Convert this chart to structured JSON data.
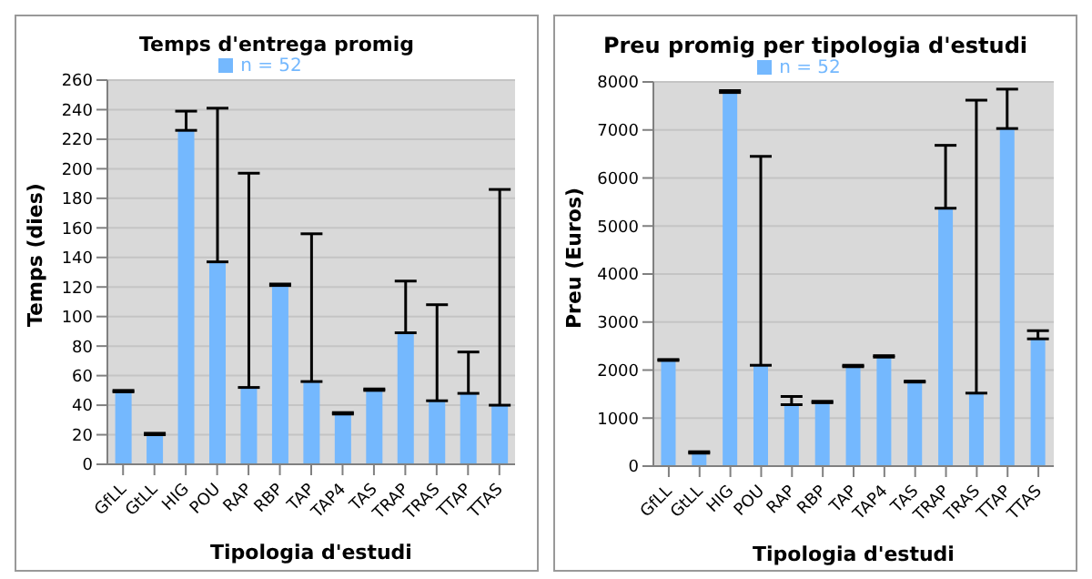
{
  "chart_data": [
    {
      "type": "bar",
      "title": "Temps d'entrega promig",
      "xlabel": "Tipologia d'estudi",
      "ylabel": "Temps (dies)",
      "categories": [
        "GfLL",
        "GtLL",
        "HIG",
        "POU",
        "RAP",
        "RBP",
        "TAP",
        "TAP4",
        "TAS",
        "TRAP",
        "TRAS",
        "TTAP",
        "TTAS"
      ],
      "series": [
        {
          "name": "n = 52",
          "color": "#74b8fe",
          "values": [
            49,
            20,
            226,
            137,
            52,
            121,
            56,
            34,
            50,
            89,
            43,
            48,
            40
          ],
          "errors": [
            [
              49,
              50
            ],
            [
              20,
              21
            ],
            [
              226,
              239
            ],
            [
              137,
              241
            ],
            [
              52,
              197
            ],
            [
              121,
              122
            ],
            [
              56,
              156
            ],
            [
              34,
              35
            ],
            [
              50,
              51
            ],
            [
              89,
              124
            ],
            [
              43,
              108
            ],
            [
              48,
              76
            ],
            [
              40,
              186
            ]
          ]
        }
      ],
      "ylim": [
        0,
        260
      ],
      "yticks": [
        0,
        20,
        40,
        60,
        80,
        100,
        120,
        140,
        160,
        180,
        200,
        220,
        240,
        260
      ],
      "grid": "y",
      "legend": "top"
    },
    {
      "type": "bar",
      "title": "Preu promig per tipologia d'estudi",
      "xlabel": "Tipologia d'estudi",
      "ylabel": "Preu (Euros)",
      "categories": [
        "GfLL",
        "GtLL",
        "HIG",
        "POU",
        "RAP",
        "RBP",
        "TAP",
        "TAP4",
        "TAS",
        "TRAP",
        "TRAS",
        "TTAP",
        "TTAS"
      ],
      "series": [
        {
          "name": "n = 52",
          "color": "#74b8fe",
          "values": [
            2200,
            270,
            7780,
            2100,
            1280,
            1320,
            2070,
            2270,
            1750,
            5370,
            1520,
            7030,
            2650
          ],
          "errors": [
            [
              2200,
              2220
            ],
            [
              270,
              300
            ],
            [
              7780,
              7820
            ],
            [
              2100,
              6450
            ],
            [
              1280,
              1450
            ],
            [
              1320,
              1350
            ],
            [
              2070,
              2100
            ],
            [
              2270,
              2300
            ],
            [
              1750,
              1770
            ],
            [
              5370,
              6680
            ],
            [
              1520,
              7620
            ],
            [
              7030,
              7850
            ],
            [
              2650,
              2820
            ]
          ]
        }
      ],
      "ylim": [
        0,
        8000
      ],
      "yticks": [
        0,
        1000,
        2000,
        3000,
        4000,
        5000,
        6000,
        7000,
        8000
      ],
      "grid": "y",
      "legend": "top"
    }
  ]
}
